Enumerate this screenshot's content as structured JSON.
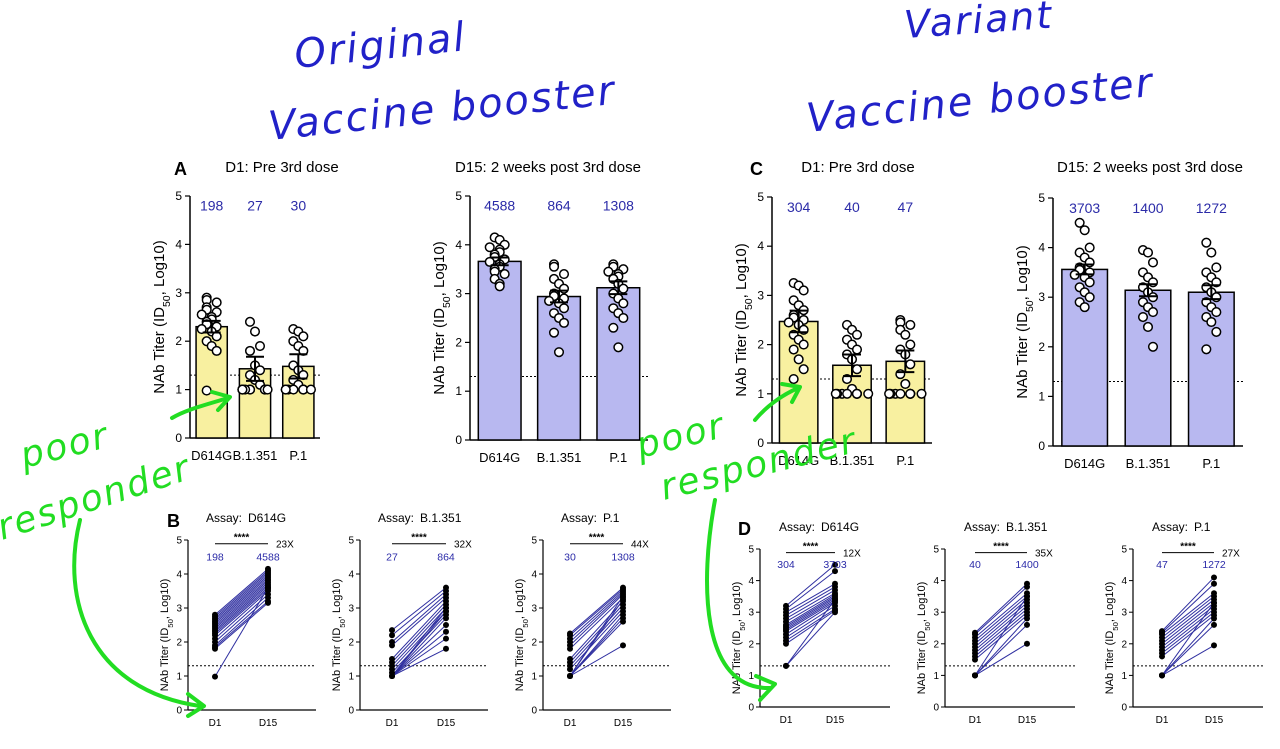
{
  "colors": {
    "yellow": "#f8f0a0",
    "blue": "#b8b8f0",
    "titer_text": "#2b2ba8",
    "pair_line": "#2f2fa0",
    "handwriting_blue": "#2121c8",
    "handwriting_green": "#22dd22"
  },
  "annotations": {
    "original_line1": "Original",
    "original_line2": "Vaccine booster",
    "variant_line1": "Variant",
    "variant_line2": "Vaccine booster",
    "poor1": "poor",
    "responder1": "responder",
    "poor2": "poor",
    "responder2": "responder"
  },
  "panel_letters": {
    "A": "A",
    "B": "B",
    "C": "C",
    "D": "D"
  },
  "chart_data": [
    {
      "id": "A1",
      "type": "bar",
      "panel": "A",
      "title": "D1: Pre 3rd dose",
      "ylabel": "NAb Titer (ID50, Log10)",
      "ylim": [
        0,
        5
      ],
      "yticks": [
        "0",
        "1",
        "2",
        "3",
        "4",
        "5"
      ],
      "threshold": 1.3,
      "color": "yellow",
      "categories": [
        "D614G",
        "B.1.351",
        "P.1"
      ],
      "values": [
        2.3,
        1.43,
        1.48
      ],
      "errors": [
        0.12,
        0.25,
        0.25
      ],
      "titers": [
        "198",
        "27",
        "30"
      ],
      "points": [
        [
          2.9,
          2.85,
          2.8,
          2.7,
          2.65,
          2.6,
          2.55,
          2.5,
          2.45,
          2.4,
          2.35,
          2.3,
          2.25,
          2.2,
          2.1,
          2.0,
          1.9,
          1.8,
          0.98
        ],
        [
          2.4,
          2.2,
          1.9,
          1.8,
          1.5,
          1.4,
          1.3,
          1.2,
          1.1,
          1.0,
          1.0,
          1.0,
          1.0,
          1.0,
          1.0,
          1.0,
          1.0,
          1.0,
          1.0
        ],
        [
          2.25,
          2.2,
          2.1,
          2.0,
          1.9,
          1.8,
          1.5,
          1.4,
          1.3,
          1.2,
          1.1,
          1.0,
          1.0,
          1.0,
          1.0,
          1.0,
          1.0,
          1.0,
          1.0
        ]
      ]
    },
    {
      "id": "A2",
      "type": "bar",
      "panel": "A",
      "title": "D15: 2 weeks post 3rd dose",
      "ylabel": "NAb Titer (ID50, Log10)",
      "ylim": [
        0,
        5
      ],
      "yticks": [
        "0",
        "1",
        "2",
        "3",
        "4",
        "5"
      ],
      "threshold": 1.3,
      "color": "blue",
      "categories": [
        "D614G",
        "B.1.351",
        "P.1"
      ],
      "values": [
        3.66,
        2.94,
        3.12
      ],
      "errors": [
        0.08,
        0.12,
        0.13
      ],
      "titers": [
        "4588",
        "864",
        "1308"
      ],
      "points": [
        [
          4.15,
          4.1,
          4.0,
          3.95,
          3.9,
          3.85,
          3.8,
          3.75,
          3.7,
          3.65,
          3.6,
          3.55,
          3.5,
          3.45,
          3.4,
          3.3,
          3.2,
          3.15
        ],
        [
          3.6,
          3.55,
          3.4,
          3.3,
          3.2,
          3.1,
          3.0,
          2.95,
          2.9,
          2.85,
          2.8,
          2.7,
          2.6,
          2.5,
          2.4,
          2.2,
          1.8
        ],
        [
          3.6,
          3.55,
          3.5,
          3.45,
          3.4,
          3.35,
          3.3,
          3.2,
          3.1,
          3.0,
          2.9,
          2.8,
          2.7,
          2.6,
          2.5,
          2.3,
          1.9
        ]
      ]
    },
    {
      "id": "C1",
      "type": "bar",
      "panel": "C",
      "title": "D1: Pre 3rd dose",
      "ylabel": "NAb Titer (ID50, Log10)",
      "ylim": [
        0,
        5
      ],
      "yticks": [
        "0",
        "1",
        "2",
        "3",
        "4",
        "5"
      ],
      "threshold": 1.3,
      "color": "yellow",
      "categories": [
        "D614G",
        "B.1.351",
        "P.1"
      ],
      "values": [
        2.47,
        1.58,
        1.66
      ],
      "errors": [
        0.22,
        0.22,
        0.22
      ],
      "titers": [
        "304",
        "40",
        "47"
      ],
      "points": [
        [
          3.25,
          3.2,
          3.1,
          2.9,
          2.8,
          2.7,
          2.6,
          2.55,
          2.5,
          2.45,
          2.4,
          2.3,
          2.2,
          2.1,
          2.0,
          1.9,
          1.7,
          1.5,
          1.3
        ],
        [
          2.4,
          2.3,
          2.2,
          2.1,
          2.0,
          1.9,
          1.8,
          1.7,
          1.5,
          1.3,
          1.1,
          1.0,
          1.0,
          1.0,
          1.0,
          1.0,
          1.0,
          1.0,
          1.0
        ],
        [
          2.5,
          2.45,
          2.4,
          2.3,
          2.2,
          2.0,
          1.9,
          1.8,
          1.6,
          1.4,
          1.2,
          1.0,
          1.0,
          1.0,
          1.0,
          1.0,
          1.0,
          1.0,
          1.0
        ]
      ]
    },
    {
      "id": "C2",
      "type": "bar",
      "panel": "C",
      "title": "D15: 2 weeks post 3rd dose",
      "ylabel": "NAb Titer (ID50, Log10)",
      "ylim": [
        0,
        5
      ],
      "yticks": [
        "0",
        "1",
        "2",
        "3",
        "4",
        "5"
      ],
      "threshold": 1.3,
      "color": "blue",
      "categories": [
        "D614G",
        "B.1.351",
        "P.1"
      ],
      "values": [
        3.56,
        3.14,
        3.1
      ],
      "errors": [
        0.1,
        0.12,
        0.14
      ],
      "titers": [
        "3703",
        "1400",
        "1272"
      ],
      "points": [
        [
          4.5,
          4.35,
          4.0,
          3.9,
          3.8,
          3.7,
          3.6,
          3.55,
          3.5,
          3.45,
          3.4,
          3.3,
          3.2,
          3.1,
          3.0,
          2.9,
          2.8
        ],
        [
          3.95,
          3.9,
          3.7,
          3.5,
          3.4,
          3.3,
          3.2,
          3.1,
          3.0,
          2.9,
          2.8,
          2.7,
          2.6,
          2.4,
          2.0
        ],
        [
          4.1,
          3.9,
          3.6,
          3.5,
          3.4,
          3.3,
          3.2,
          3.1,
          3.0,
          2.9,
          2.8,
          2.7,
          2.6,
          2.5,
          2.3,
          1.95
        ]
      ]
    },
    {
      "id": "B1",
      "type": "line",
      "panel": "B",
      "assay_label": "Assay:",
      "assay": "D614G",
      "ylabel": "NAb Titer (ID50, Log10)",
      "ylim": [
        0,
        5
      ],
      "yticks": [
        "0",
        "1",
        "2",
        "3",
        "4",
        "5"
      ],
      "threshold": 1.3,
      "x": [
        "D1",
        "D15"
      ],
      "significance": "****",
      "fold": "23X",
      "titers": [
        "198",
        "4588"
      ],
      "pairs": [
        [
          2.8,
          4.15
        ],
        [
          2.75,
          4.1
        ],
        [
          2.7,
          4.05
        ],
        [
          2.65,
          4.0
        ],
        [
          2.6,
          3.95
        ],
        [
          2.55,
          3.9
        ],
        [
          2.5,
          3.85
        ],
        [
          2.45,
          3.8
        ],
        [
          2.4,
          3.75
        ],
        [
          2.35,
          3.7
        ],
        [
          2.3,
          3.65
        ],
        [
          2.25,
          3.6
        ],
        [
          2.2,
          3.55
        ],
        [
          2.1,
          3.5
        ],
        [
          2.0,
          3.4
        ],
        [
          1.9,
          3.3
        ],
        [
          1.85,
          3.2
        ],
        [
          1.8,
          3.15
        ],
        [
          0.98,
          3.6
        ]
      ]
    },
    {
      "id": "B2",
      "type": "line",
      "panel": "B",
      "assay_label": "Assay:",
      "assay": "B.1.351",
      "ylabel": "NAb Titer (ID50, Log10)",
      "ylim": [
        0,
        5
      ],
      "yticks": [
        "0",
        "1",
        "2",
        "3",
        "4",
        "5"
      ],
      "threshold": 1.3,
      "x": [
        "D1",
        "D15"
      ],
      "significance": "****",
      "fold": "32X",
      "titers": [
        "27",
        "864"
      ],
      "pairs": [
        [
          2.35,
          3.6
        ],
        [
          2.2,
          3.5
        ],
        [
          2.0,
          3.4
        ],
        [
          1.9,
          3.3
        ],
        [
          1.5,
          3.2
        ],
        [
          1.4,
          3.1
        ],
        [
          1.3,
          3.0
        ],
        [
          1.2,
          2.9
        ],
        [
          1.1,
          2.8
        ],
        [
          1.0,
          2.7
        ],
        [
          1.0,
          2.5
        ],
        [
          1.0,
          2.3
        ],
        [
          1.0,
          2.1
        ],
        [
          1.0,
          1.8
        ],
        [
          1.0,
          3.0
        ],
        [
          1.0,
          2.9
        ]
      ]
    },
    {
      "id": "B3",
      "type": "line",
      "panel": "B",
      "assay_label": "Assay:",
      "assay": "P.1",
      "ylabel": "NAb Titer (ID50, Log10)",
      "ylim": [
        0,
        5
      ],
      "yticks": [
        "0",
        "1",
        "2",
        "3",
        "4",
        "5"
      ],
      "threshold": 1.3,
      "x": [
        "D1",
        "D15"
      ],
      "significance": "****",
      "fold": "44X",
      "titers": [
        "30",
        "1308"
      ],
      "pairs": [
        [
          2.25,
          3.6
        ],
        [
          2.2,
          3.55
        ],
        [
          2.1,
          3.5
        ],
        [
          2.0,
          3.45
        ],
        [
          1.9,
          3.4
        ],
        [
          1.8,
          3.3
        ],
        [
          1.5,
          3.2
        ],
        [
          1.4,
          3.1
        ],
        [
          1.3,
          3.0
        ],
        [
          1.2,
          2.9
        ],
        [
          1.0,
          2.8
        ],
        [
          1.0,
          2.7
        ],
        [
          1.0,
          2.6
        ],
        [
          1.0,
          1.9
        ],
        [
          1.0,
          3.35
        ],
        [
          1.0,
          3.25
        ]
      ]
    },
    {
      "id": "D1",
      "type": "line",
      "panel": "D",
      "assay_label": "Assay:",
      "assay": "D614G",
      "ylabel": "NAb Titer (ID50, Log10)",
      "ylim": [
        0,
        5
      ],
      "yticks": [
        "0",
        "1",
        "2",
        "3",
        "4",
        "5"
      ],
      "threshold": 1.3,
      "x": [
        "D1",
        "D15"
      ],
      "significance": "****",
      "fold": "12X",
      "titers": [
        "304",
        "3703"
      ],
      "pairs": [
        [
          3.2,
          4.5
        ],
        [
          3.1,
          4.3
        ],
        [
          3.0,
          3.9
        ],
        [
          2.9,
          3.8
        ],
        [
          2.8,
          3.7
        ],
        [
          2.7,
          3.6
        ],
        [
          2.6,
          3.55
        ],
        [
          2.55,
          3.5
        ],
        [
          2.5,
          3.45
        ],
        [
          2.45,
          3.4
        ],
        [
          2.4,
          3.35
        ],
        [
          2.3,
          3.3
        ],
        [
          2.2,
          3.2
        ],
        [
          2.1,
          3.1
        ],
        [
          2.0,
          3.05
        ],
        [
          1.3,
          3.0
        ],
        [
          1.3,
          3.4
        ]
      ]
    },
    {
      "id": "D2",
      "type": "line",
      "panel": "D",
      "assay_label": "Assay:",
      "assay": "B.1.351",
      "ylabel": "NAb Titer (ID50, Log10)",
      "ylim": [
        0,
        5
      ],
      "yticks": [
        "0",
        "1",
        "2",
        "3",
        "4",
        "5"
      ],
      "threshold": 1.3,
      "x": [
        "D1",
        "D15"
      ],
      "significance": "****",
      "fold": "35X",
      "titers": [
        "40",
        "1400"
      ],
      "pairs": [
        [
          2.35,
          3.9
        ],
        [
          2.3,
          3.8
        ],
        [
          2.2,
          3.6
        ],
        [
          2.1,
          3.5
        ],
        [
          2.0,
          3.4
        ],
        [
          1.9,
          3.3
        ],
        [
          1.8,
          3.2
        ],
        [
          1.7,
          3.1
        ],
        [
          1.6,
          3.0
        ],
        [
          1.5,
          2.9
        ],
        [
          1.0,
          2.8
        ],
        [
          1.0,
          2.6
        ],
        [
          1.0,
          2.0
        ],
        [
          1.0,
          3.5
        ]
      ]
    },
    {
      "id": "D3",
      "type": "line",
      "panel": "D",
      "assay_label": "Assay:",
      "assay": "P.1",
      "ylabel": "NAb Titer (ID50, Log10)",
      "ylim": [
        0,
        5
      ],
      "yticks": [
        "0",
        "1",
        "2",
        "3",
        "4",
        "5"
      ],
      "threshold": 1.3,
      "x": [
        "D1",
        "D15"
      ],
      "significance": "****",
      "fold": "27X",
      "titers": [
        "47",
        "1272"
      ],
      "pairs": [
        [
          2.4,
          4.1
        ],
        [
          2.35,
          3.9
        ],
        [
          2.3,
          3.6
        ],
        [
          2.2,
          3.5
        ],
        [
          2.1,
          3.4
        ],
        [
          2.0,
          3.3
        ],
        [
          1.9,
          3.2
        ],
        [
          1.8,
          3.1
        ],
        [
          1.7,
          3.0
        ],
        [
          1.6,
          2.9
        ],
        [
          1.0,
          2.8
        ],
        [
          1.0,
          2.6
        ],
        [
          1.0,
          1.95
        ],
        [
          1.0,
          3.3
        ]
      ]
    }
  ]
}
